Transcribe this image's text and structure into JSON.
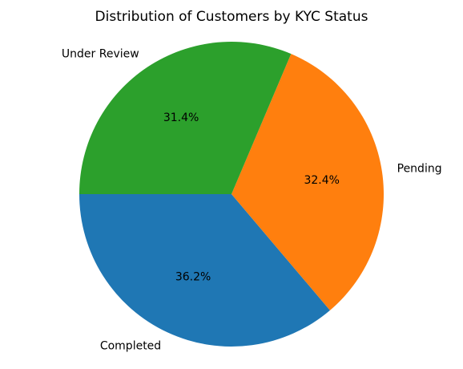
{
  "chart_data": {
    "type": "pie",
    "title": "Distribution of Customers by KYC Status",
    "start_angle_deg": 180,
    "direction": "counterclockwise",
    "slices": [
      {
        "label": "Completed",
        "value": 36.2,
        "pct_label": "36.2%",
        "color": "#1f77b4"
      },
      {
        "label": "Pending",
        "value": 32.4,
        "pct_label": "32.4%",
        "color": "#ff7f0e"
      },
      {
        "label": "Under Review",
        "value": 31.4,
        "pct_label": "31.4%",
        "color": "#2ca02c"
      }
    ]
  }
}
